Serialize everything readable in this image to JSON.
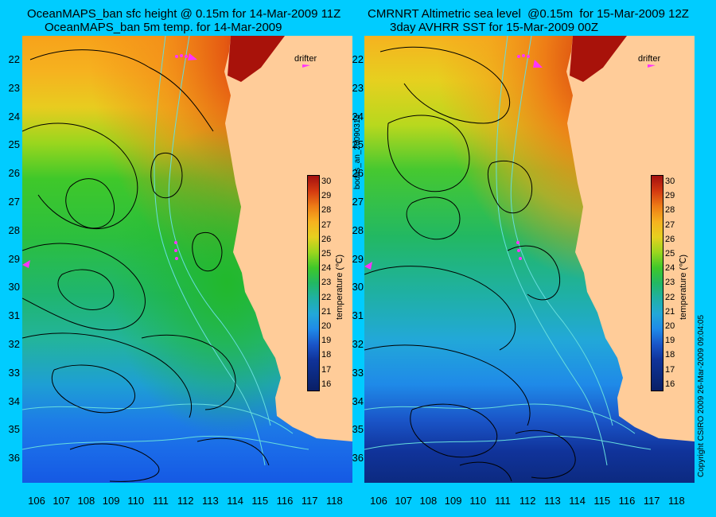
{
  "left_panel": {
    "title_line1": "OceanMAPS_ban sfc height @ 0.15m for 14-Mar-2009 11Z",
    "title_line2": "OceanMAPS_ban 5m temp. for 14-Mar-2009",
    "drifter_label": "drifter"
  },
  "right_panel": {
    "title_line1": "CMRNRT Altimetric sea level  @0.15m  for 15-Mar-2009 12Z",
    "title_line2": "3day AVHRR SST for 15-Mar-2009 00Z",
    "drifter_label": "drifter"
  },
  "axes": {
    "y_ticks": [
      "22",
      "23",
      "24",
      "25",
      "26",
      "27",
      "28",
      "29",
      "30",
      "31",
      "32",
      "33",
      "34",
      "35",
      "36"
    ],
    "x_ticks": [
      "106",
      "107",
      "108",
      "109",
      "110",
      "111",
      "112",
      "113",
      "114",
      "115",
      "116",
      "117",
      "118"
    ]
  },
  "colorbar": {
    "labels": [
      "30",
      "29",
      "28",
      "27",
      "26",
      "25",
      "24",
      "23",
      "22",
      "21",
      "20",
      "19",
      "18",
      "17",
      "16"
    ],
    "title": "temperature (℃)"
  },
  "side_text": {
    "middle": "bodas_an_20090314",
    "right": "Copyright CSIRO 2009  26-Mar-2009 09:04:05"
  },
  "colors": {
    "background": "#00ccff",
    "land": "#ffcc99",
    "contour": "#000000",
    "bathymetry": "#66dddd",
    "drifter": "#ff33ff"
  }
}
